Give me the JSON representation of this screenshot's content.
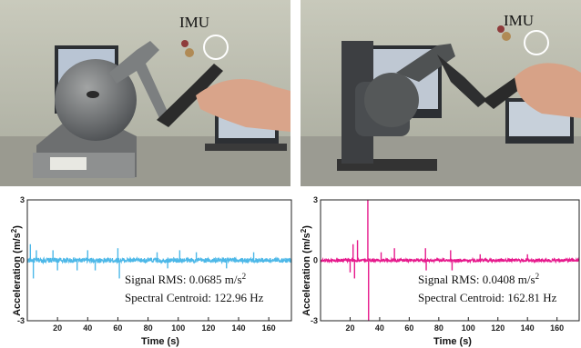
{
  "photos": {
    "left": {
      "imu_label": "IMU"
    },
    "right": {
      "imu_label": "IMU"
    }
  },
  "colors": {
    "left_series": "#4db8e8",
    "right_series": "#e6198c"
  },
  "chart_data": [
    {
      "type": "line",
      "xlabel": "Time (s)",
      "ylabel": "Acceleration (m/s²)",
      "ylabel_main": "Acceleration (m/s",
      "ylabel_sup": "2",
      "ylabel_close": ")",
      "xlim": [
        0,
        175
      ],
      "ylim": [
        -3,
        3
      ],
      "xticks": [
        20,
        40,
        60,
        80,
        100,
        120,
        140,
        160
      ],
      "yticks": [
        -3,
        0,
        3
      ],
      "series": [
        {
          "color": "#4db8e8",
          "baseline": 0,
          "noise_amplitude": 0.12,
          "spikes": [
            {
              "x": 2,
              "y": 0.8
            },
            {
              "x": 4,
              "y": -0.9
            },
            {
              "x": 6,
              "y": 0.5
            },
            {
              "x": 17,
              "y": 0.5
            },
            {
              "x": 20,
              "y": -0.5
            },
            {
              "x": 33,
              "y": -0.5
            },
            {
              "x": 40,
              "y": 0.5
            },
            {
              "x": 45,
              "y": -0.5
            },
            {
              "x": 60,
              "y": 0.6
            },
            {
              "x": 61,
              "y": -0.9
            },
            {
              "x": 86,
              "y": 0.4
            },
            {
              "x": 93,
              "y": -0.4
            },
            {
              "x": 101,
              "y": 0.5
            },
            {
              "x": 112,
              "y": 0.4
            },
            {
              "x": 132,
              "y": -0.4
            },
            {
              "x": 150,
              "y": 0.4
            }
          ]
        }
      ],
      "annotations": {
        "rms_label": "Signal RMS: 0.0685 m/s",
        "rms_sup": "2",
        "centroid": "Spectral Centroid: 122.96 Hz"
      }
    },
    {
      "type": "line",
      "xlabel": "Time (s)",
      "ylabel": "Acceleration (m/s²)",
      "ylabel_main": "Acceleration (m/s",
      "ylabel_sup": "2",
      "ylabel_close": ")",
      "xlim": [
        0,
        175
      ],
      "ylim": [
        -3,
        3
      ],
      "xticks": [
        20,
        40,
        60,
        80,
        100,
        120,
        140,
        160
      ],
      "yticks": [
        -3,
        0,
        3
      ],
      "series": [
        {
          "color": "#e6198c",
          "baseline": 0,
          "noise_amplitude": 0.08,
          "spikes": [
            {
              "x": 20,
              "y": -0.6
            },
            {
              "x": 22,
              "y": 0.8
            },
            {
              "x": 23,
              "y": -0.9
            },
            {
              "x": 25,
              "y": 1.0
            },
            {
              "x": 32,
              "y": 3.0
            },
            {
              "x": 32.5,
              "y": -3.0
            },
            {
              "x": 41,
              "y": 0.4
            },
            {
              "x": 50,
              "y": 0.6
            },
            {
              "x": 71,
              "y": 0.6
            },
            {
              "x": 71.5,
              "y": -0.5
            },
            {
              "x": 88,
              "y": 0.5
            },
            {
              "x": 89,
              "y": -0.5
            },
            {
              "x": 108,
              "y": 0.3
            },
            {
              "x": 140,
              "y": 0.3
            }
          ]
        }
      ],
      "annotations": {
        "rms_label": "Signal RMS: 0.0408 m/s",
        "rms_sup": "2",
        "centroid": "Spectral Centroid: 162.81 Hz"
      }
    }
  ]
}
